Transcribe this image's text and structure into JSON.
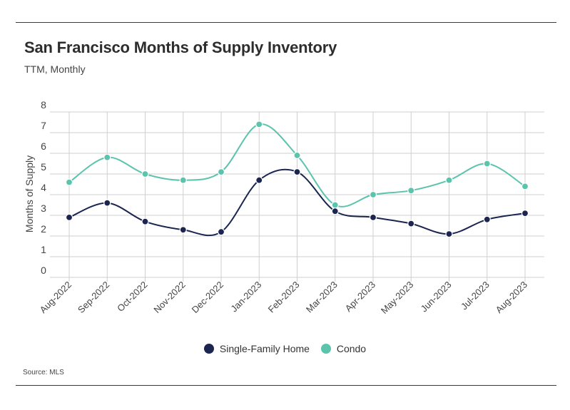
{
  "header": {
    "title": "San Francisco Months of Supply Inventory",
    "subtitle": "TTM, Monthly"
  },
  "footer": {
    "source": "Source:  MLS"
  },
  "colors": {
    "single_family": "#1b2550",
    "condo": "#5cc3ad",
    "grid": "#cfcfcf"
  },
  "chart_data": {
    "type": "line",
    "title": "San Francisco Months of Supply Inventory",
    "subtitle": "TTM, Monthly",
    "xlabel": "",
    "ylabel": "Months of Supply",
    "ylim": [
      0,
      8
    ],
    "yticks": [
      0,
      1,
      2,
      3,
      4,
      5,
      6,
      7,
      8
    ],
    "grid": true,
    "legend_position": "bottom-center",
    "categories": [
      "Aug-2022",
      "Sep-2022",
      "Oct-2022",
      "Nov-2022",
      "Dec-2022",
      "Jan-2023",
      "Feb-2023",
      "Mar-2023",
      "Apr-2023",
      "May-2023",
      "Jun-2023",
      "Jul-2023",
      "Aug-2023"
    ],
    "series": [
      {
        "name": "Single-Family Home",
        "key": "single_family",
        "values": [
          2.9,
          3.6,
          2.7,
          2.3,
          2.2,
          4.7,
          5.1,
          3.2,
          2.9,
          2.6,
          2.1,
          2.8,
          3.1
        ]
      },
      {
        "name": "Condo",
        "key": "condo",
        "values": [
          4.6,
          5.8,
          5.0,
          4.7,
          5.1,
          7.4,
          5.9,
          3.5,
          4.0,
          4.2,
          4.7,
          5.5,
          4.4
        ]
      }
    ]
  }
}
